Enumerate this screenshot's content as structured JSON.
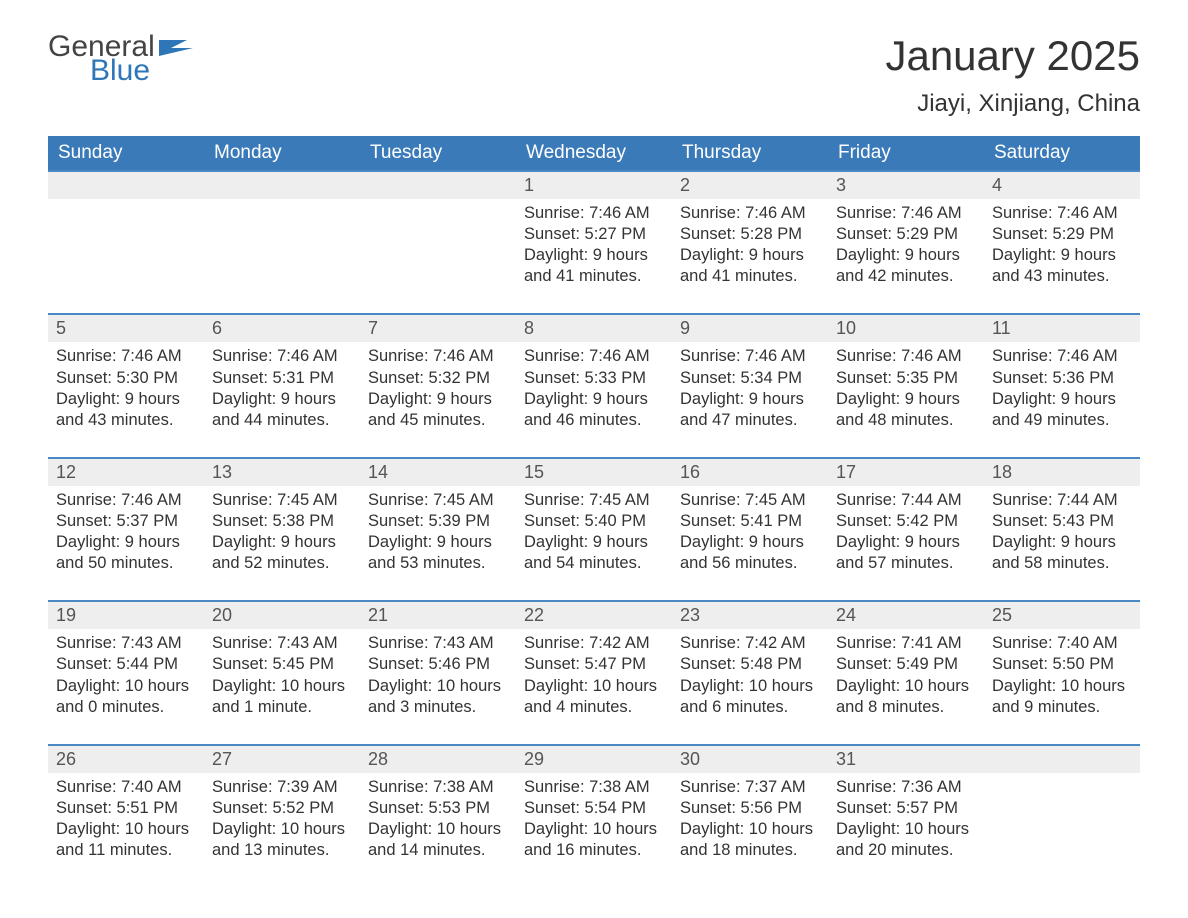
{
  "logo": {
    "text1": "General",
    "text2": "Blue",
    "icon_color": "#2f76b8",
    "text1_color": "#444444",
    "text2_color": "#2f76b8"
  },
  "header": {
    "month_title": "January 2025",
    "location": "Jiayi, Xinjiang, China"
  },
  "colors": {
    "header_bg": "#3a7ab8",
    "header_text": "#ffffff",
    "daynum_bg": "#eeeeee",
    "border_top": "#4a89c4",
    "body_text": "#333333",
    "daynum_text": "#555555",
    "page_bg": "#ffffff"
  },
  "typography": {
    "title_size": 42,
    "location_size": 24,
    "th_size": 19,
    "daynum_size": 18,
    "body_size": 16.5
  },
  "calendar": {
    "columns": [
      "Sunday",
      "Monday",
      "Tuesday",
      "Wednesday",
      "Thursday",
      "Friday",
      "Saturday"
    ],
    "weeks": [
      [
        null,
        null,
        null,
        {
          "n": "1",
          "l1": "Sunrise: 7:46 AM",
          "l2": "Sunset: 5:27 PM",
          "l3": "Daylight: 9 hours",
          "l4": "and 41 minutes."
        },
        {
          "n": "2",
          "l1": "Sunrise: 7:46 AM",
          "l2": "Sunset: 5:28 PM",
          "l3": "Daylight: 9 hours",
          "l4": "and 41 minutes."
        },
        {
          "n": "3",
          "l1": "Sunrise: 7:46 AM",
          "l2": "Sunset: 5:29 PM",
          "l3": "Daylight: 9 hours",
          "l4": "and 42 minutes."
        },
        {
          "n": "4",
          "l1": "Sunrise: 7:46 AM",
          "l2": "Sunset: 5:29 PM",
          "l3": "Daylight: 9 hours",
          "l4": "and 43 minutes."
        }
      ],
      [
        {
          "n": "5",
          "l1": "Sunrise: 7:46 AM",
          "l2": "Sunset: 5:30 PM",
          "l3": "Daylight: 9 hours",
          "l4": "and 43 minutes."
        },
        {
          "n": "6",
          "l1": "Sunrise: 7:46 AM",
          "l2": "Sunset: 5:31 PM",
          "l3": "Daylight: 9 hours",
          "l4": "and 44 minutes."
        },
        {
          "n": "7",
          "l1": "Sunrise: 7:46 AM",
          "l2": "Sunset: 5:32 PM",
          "l3": "Daylight: 9 hours",
          "l4": "and 45 minutes."
        },
        {
          "n": "8",
          "l1": "Sunrise: 7:46 AM",
          "l2": "Sunset: 5:33 PM",
          "l3": "Daylight: 9 hours",
          "l4": "and 46 minutes."
        },
        {
          "n": "9",
          "l1": "Sunrise: 7:46 AM",
          "l2": "Sunset: 5:34 PM",
          "l3": "Daylight: 9 hours",
          "l4": "and 47 minutes."
        },
        {
          "n": "10",
          "l1": "Sunrise: 7:46 AM",
          "l2": "Sunset: 5:35 PM",
          "l3": "Daylight: 9 hours",
          "l4": "and 48 minutes."
        },
        {
          "n": "11",
          "l1": "Sunrise: 7:46 AM",
          "l2": "Sunset: 5:36 PM",
          "l3": "Daylight: 9 hours",
          "l4": "and 49 minutes."
        }
      ],
      [
        {
          "n": "12",
          "l1": "Sunrise: 7:46 AM",
          "l2": "Sunset: 5:37 PM",
          "l3": "Daylight: 9 hours",
          "l4": "and 50 minutes."
        },
        {
          "n": "13",
          "l1": "Sunrise: 7:45 AM",
          "l2": "Sunset: 5:38 PM",
          "l3": "Daylight: 9 hours",
          "l4": "and 52 minutes."
        },
        {
          "n": "14",
          "l1": "Sunrise: 7:45 AM",
          "l2": "Sunset: 5:39 PM",
          "l3": "Daylight: 9 hours",
          "l4": "and 53 minutes."
        },
        {
          "n": "15",
          "l1": "Sunrise: 7:45 AM",
          "l2": "Sunset: 5:40 PM",
          "l3": "Daylight: 9 hours",
          "l4": "and 54 minutes."
        },
        {
          "n": "16",
          "l1": "Sunrise: 7:45 AM",
          "l2": "Sunset: 5:41 PM",
          "l3": "Daylight: 9 hours",
          "l4": "and 56 minutes."
        },
        {
          "n": "17",
          "l1": "Sunrise: 7:44 AM",
          "l2": "Sunset: 5:42 PM",
          "l3": "Daylight: 9 hours",
          "l4": "and 57 minutes."
        },
        {
          "n": "18",
          "l1": "Sunrise: 7:44 AM",
          "l2": "Sunset: 5:43 PM",
          "l3": "Daylight: 9 hours",
          "l4": "and 58 minutes."
        }
      ],
      [
        {
          "n": "19",
          "l1": "Sunrise: 7:43 AM",
          "l2": "Sunset: 5:44 PM",
          "l3": "Daylight: 10 hours",
          "l4": "and 0 minutes."
        },
        {
          "n": "20",
          "l1": "Sunrise: 7:43 AM",
          "l2": "Sunset: 5:45 PM",
          "l3": "Daylight: 10 hours",
          "l4": "and 1 minute."
        },
        {
          "n": "21",
          "l1": "Sunrise: 7:43 AM",
          "l2": "Sunset: 5:46 PM",
          "l3": "Daylight: 10 hours",
          "l4": "and 3 minutes."
        },
        {
          "n": "22",
          "l1": "Sunrise: 7:42 AM",
          "l2": "Sunset: 5:47 PM",
          "l3": "Daylight: 10 hours",
          "l4": "and 4 minutes."
        },
        {
          "n": "23",
          "l1": "Sunrise: 7:42 AM",
          "l2": "Sunset: 5:48 PM",
          "l3": "Daylight: 10 hours",
          "l4": "and 6 minutes."
        },
        {
          "n": "24",
          "l1": "Sunrise: 7:41 AM",
          "l2": "Sunset: 5:49 PM",
          "l3": "Daylight: 10 hours",
          "l4": "and 8 minutes."
        },
        {
          "n": "25",
          "l1": "Sunrise: 7:40 AM",
          "l2": "Sunset: 5:50 PM",
          "l3": "Daylight: 10 hours",
          "l4": "and 9 minutes."
        }
      ],
      [
        {
          "n": "26",
          "l1": "Sunrise: 7:40 AM",
          "l2": "Sunset: 5:51 PM",
          "l3": "Daylight: 10 hours",
          "l4": "and 11 minutes."
        },
        {
          "n": "27",
          "l1": "Sunrise: 7:39 AM",
          "l2": "Sunset: 5:52 PM",
          "l3": "Daylight: 10 hours",
          "l4": "and 13 minutes."
        },
        {
          "n": "28",
          "l1": "Sunrise: 7:38 AM",
          "l2": "Sunset: 5:53 PM",
          "l3": "Daylight: 10 hours",
          "l4": "and 14 minutes."
        },
        {
          "n": "29",
          "l1": "Sunrise: 7:38 AM",
          "l2": "Sunset: 5:54 PM",
          "l3": "Daylight: 10 hours",
          "l4": "and 16 minutes."
        },
        {
          "n": "30",
          "l1": "Sunrise: 7:37 AM",
          "l2": "Sunset: 5:56 PM",
          "l3": "Daylight: 10 hours",
          "l4": "and 18 minutes."
        },
        {
          "n": "31",
          "l1": "Sunrise: 7:36 AM",
          "l2": "Sunset: 5:57 PM",
          "l3": "Daylight: 10 hours",
          "l4": "and 20 minutes."
        },
        null
      ]
    ]
  }
}
